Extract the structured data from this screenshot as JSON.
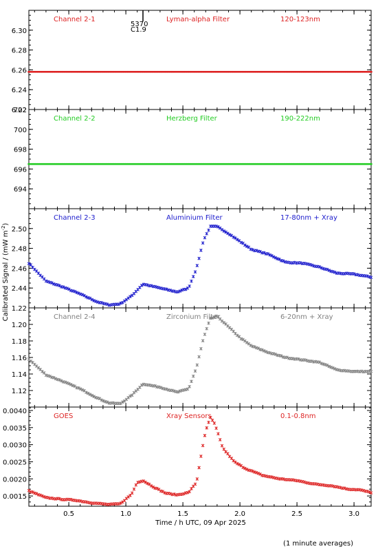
{
  "figure": {
    "ylabel": "Calibrated Signal / (mW m",
    "ylabel_exp": "-2",
    "ylabel_close": ")",
    "xlabel": "Time / h UTC, 09 Apr 2025",
    "footnote": "(1 minute averages)",
    "event_marker": {
      "x": 1.15,
      "labels": [
        "5370",
        "C1.9"
      ]
    }
  },
  "chart_data": [
    {
      "type": "scatter",
      "name": "Channel 2-1",
      "filter": "Lyman-alpha Filter",
      "band": "120-123nm",
      "color": "#dd2222",
      "xlim": [
        0.15,
        3.15
      ],
      "ylim": [
        6.22,
        6.32
      ],
      "yticks": [
        6.22,
        6.24,
        6.26,
        6.28,
        6.3
      ],
      "ytick_labels": [
        "6.22",
        "6.24",
        "6.26",
        "6.28",
        "6.30"
      ],
      "x": [
        0.15,
        3.15
      ],
      "y": [
        6.258,
        6.258
      ]
    },
    {
      "type": "scatter",
      "name": "Channel 2-2",
      "filter": "Herzberg Filter",
      "band": "190-222nm",
      "color": "#22cc22",
      "xlim": [
        0.15,
        3.15
      ],
      "ylim": [
        692,
        702
      ],
      "yticks": [
        694,
        696,
        698,
        700,
        702
      ],
      "ytick_labels": [
        "694",
        "696",
        "698",
        "700",
        "702"
      ],
      "x": [
        0.15,
        3.15
      ],
      "y": [
        696.5,
        696.5
      ]
    },
    {
      "type": "scatter",
      "name": "Channel 2-3",
      "filter": "Aluminium Filter",
      "band": "17-80nm + Xray",
      "color": "#1a1acc",
      "xlim": [
        0.15,
        3.15
      ],
      "ylim": [
        2.42,
        2.52
      ],
      "yticks": [
        2.44,
        2.46,
        2.48,
        2.5
      ],
      "ytick_labels": [
        "2.44",
        "2.46",
        "2.48",
        "2.50"
      ],
      "x": [
        0.15,
        0.3,
        0.45,
        0.6,
        0.75,
        0.85,
        0.95,
        1.05,
        1.15,
        1.3,
        1.45,
        1.55,
        1.62,
        1.68,
        1.74,
        1.8,
        1.9,
        2.0,
        2.1,
        2.25,
        2.4,
        2.55,
        2.7,
        2.85,
        3.0,
        3.15
      ],
      "y": [
        2.465,
        2.447,
        2.441,
        2.434,
        2.426,
        2.423,
        2.424,
        2.432,
        2.444,
        2.44,
        2.436,
        2.44,
        2.46,
        2.488,
        2.502,
        2.502,
        2.495,
        2.487,
        2.479,
        2.474,
        2.466,
        2.465,
        2.461,
        2.455,
        2.454,
        2.451
      ]
    },
    {
      "type": "scatter",
      "name": "Channel 2-4",
      "filter": "Zirconium Filter",
      "band": "6-20nm + Xray",
      "color": "#808080",
      "xlim": [
        0.15,
        3.15
      ],
      "ylim": [
        1.1,
        1.22
      ],
      "yticks": [
        1.12,
        1.14,
        1.16,
        1.18,
        1.2,
        1.22
      ],
      "ytick_labels": [
        "1.12",
        "1.14",
        "1.16",
        "1.18",
        "1.20",
        "1.22"
      ],
      "x": [
        0.15,
        0.3,
        0.45,
        0.6,
        0.75,
        0.85,
        0.95,
        1.05,
        1.15,
        1.3,
        1.45,
        1.55,
        1.62,
        1.68,
        1.74,
        1.8,
        1.9,
        2.0,
        2.1,
        2.25,
        2.4,
        2.55,
        2.7,
        2.85,
        3.0,
        3.15
      ],
      "y": [
        1.158,
        1.139,
        1.131,
        1.122,
        1.111,
        1.105,
        1.104,
        1.114,
        1.128,
        1.124,
        1.118,
        1.122,
        1.148,
        1.183,
        1.207,
        1.21,
        1.197,
        1.184,
        1.174,
        1.166,
        1.16,
        1.157,
        1.154,
        1.145,
        1.143,
        1.143
      ]
    },
    {
      "type": "scatter",
      "name": "GOES",
      "filter": "Xray Sensors",
      "band": "0.1-0.8nm",
      "color": "#dd2222",
      "xlim": [
        0.15,
        3.15
      ],
      "ylim": [
        0.0012,
        0.0041
      ],
      "yticks": [
        0.0015,
        0.002,
        0.0025,
        0.003,
        0.0035,
        0.004
      ],
      "ytick_labels": [
        "0.0015",
        "0.0020",
        "0.0025",
        "0.0030",
        "0.0035",
        "0.0040"
      ],
      "x": [
        0.15,
        0.3,
        0.45,
        0.55,
        0.7,
        0.85,
        0.95,
        1.05,
        1.1,
        1.15,
        1.25,
        1.35,
        1.45,
        1.55,
        1.62,
        1.66,
        1.7,
        1.74,
        1.78,
        1.85,
        1.95,
        2.05,
        2.2,
        2.35,
        2.5,
        2.65,
        2.8,
        2.95,
        3.05,
        3.15
      ],
      "y": [
        0.00165,
        0.00145,
        0.0014,
        0.00138,
        0.0013,
        0.00125,
        0.00127,
        0.00155,
        0.0019,
        0.00195,
        0.00175,
        0.00158,
        0.00153,
        0.0016,
        0.0019,
        0.0027,
        0.0034,
        0.0038,
        0.0036,
        0.0029,
        0.0025,
        0.0023,
        0.0021,
        0.002,
        0.00195,
        0.00185,
        0.0018,
        0.0017,
        0.00168,
        0.0016
      ]
    }
  ],
  "xaxis": {
    "ticks": [
      0.5,
      1.0,
      1.5,
      2.0,
      2.5,
      3.0
    ],
    "tick_labels": [
      "0.5",
      "1.0",
      "1.5",
      "2.0",
      "2.5",
      "3.0"
    ],
    "minor_step": 0.1
  }
}
